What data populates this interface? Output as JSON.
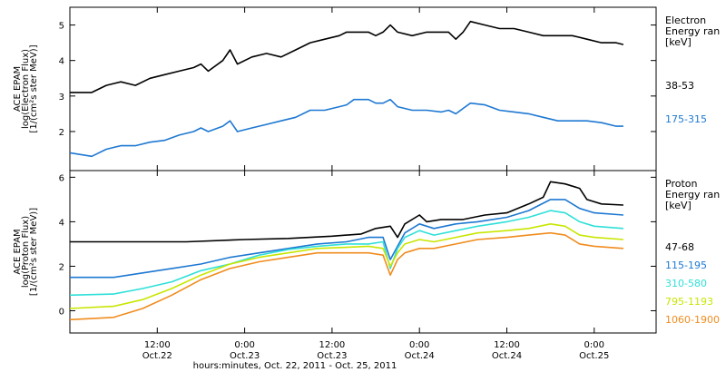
{
  "chart_data": {
    "type": "line",
    "xlabel": "hours:minutes, Oct. 22, 2011 - Oct. 25, 2011",
    "x_ticks": [
      {
        "t": 12,
        "time": "12:00",
        "date": "Oct.22"
      },
      {
        "t": 24,
        "time": "0:00",
        "date": "Oct.23"
      },
      {
        "t": 36,
        "time": "12:00",
        "date": "Oct.23"
      },
      {
        "t": 48,
        "time": "0:00",
        "date": "Oct.24"
      },
      {
        "t": 60,
        "time": "12:00",
        "date": "Oct.24"
      },
      {
        "t": 72,
        "time": "0:00",
        "date": "Oct.25"
      }
    ],
    "panels": [
      {
        "id": "electron",
        "ylabel": [
          "ACE EPAM",
          "log(Electron Flux)",
          "[1/(cm²s ster MeV)]"
        ],
        "ylim": [
          0.9,
          5.5
        ],
        "yticks": [
          2,
          3,
          4,
          5
        ],
        "legend_title": [
          "Electron",
          "Energy ran",
          "[keV]"
        ],
        "series": [
          {
            "name": "38-53",
            "color": "#000000",
            "points": [
              [
                0,
                3.1
              ],
              [
                3,
                3.1
              ],
              [
                5,
                3.3
              ],
              [
                7,
                3.4
              ],
              [
                9,
                3.3
              ],
              [
                11,
                3.5
              ],
              [
                13,
                3.6
              ],
              [
                15,
                3.7
              ],
              [
                17,
                3.8
              ],
              [
                18,
                3.9
              ],
              [
                19,
                3.7
              ],
              [
                21,
                4.0
              ],
              [
                22,
                4.3
              ],
              [
                23,
                3.9
              ],
              [
                25,
                4.1
              ],
              [
                27,
                4.2
              ],
              [
                29,
                4.1
              ],
              [
                31,
                4.3
              ],
              [
                33,
                4.5
              ],
              [
                35,
                4.6
              ],
              [
                37,
                4.7
              ],
              [
                38,
                4.8
              ],
              [
                39,
                4.8
              ],
              [
                41,
                4.8
              ],
              [
                42,
                4.7
              ],
              [
                43,
                4.8
              ],
              [
                44,
                5.0
              ],
              [
                45,
                4.8
              ],
              [
                47,
                4.7
              ],
              [
                49,
                4.8
              ],
              [
                51,
                4.8
              ],
              [
                52,
                4.8
              ],
              [
                53,
                4.6
              ],
              [
                54,
                4.8
              ],
              [
                55,
                5.1
              ],
              [
                57,
                5.0
              ],
              [
                59,
                4.9
              ],
              [
                61,
                4.9
              ],
              [
                63,
                4.8
              ],
              [
                65,
                4.7
              ],
              [
                67,
                4.7
              ],
              [
                69,
                4.7
              ],
              [
                71,
                4.6
              ],
              [
                73,
                4.5
              ],
              [
                75,
                4.5
              ],
              [
                76,
                4.45
              ]
            ]
          },
          {
            "name": "175-315",
            "color": "#1e78d2",
            "points": [
              [
                0,
                1.4
              ],
              [
                3,
                1.3
              ],
              [
                5,
                1.5
              ],
              [
                7,
                1.6
              ],
              [
                9,
                1.6
              ],
              [
                11,
                1.7
              ],
              [
                13,
                1.75
              ],
              [
                15,
                1.9
              ],
              [
                17,
                2.0
              ],
              [
                18,
                2.1
              ],
              [
                19,
                2.0
              ],
              [
                21,
                2.15
              ],
              [
                22,
                2.3
              ],
              [
                23,
                2.0
              ],
              [
                25,
                2.1
              ],
              [
                27,
                2.2
              ],
              [
                29,
                2.3
              ],
              [
                31,
                2.4
              ],
              [
                33,
                2.6
              ],
              [
                35,
                2.6
              ],
              [
                37,
                2.7
              ],
              [
                38,
                2.75
              ],
              [
                39,
                2.9
              ],
              [
                41,
                2.9
              ],
              [
                42,
                2.8
              ],
              [
                43,
                2.8
              ],
              [
                44,
                2.9
              ],
              [
                45,
                2.7
              ],
              [
                47,
                2.6
              ],
              [
                49,
                2.6
              ],
              [
                51,
                2.55
              ],
              [
                52,
                2.6
              ],
              [
                53,
                2.5
              ],
              [
                54,
                2.65
              ],
              [
                55,
                2.8
              ],
              [
                57,
                2.75
              ],
              [
                59,
                2.6
              ],
              [
                61,
                2.55
              ],
              [
                63,
                2.5
              ],
              [
                65,
                2.4
              ],
              [
                67,
                2.3
              ],
              [
                69,
                2.3
              ],
              [
                71,
                2.3
              ],
              [
                73,
                2.25
              ],
              [
                75,
                2.15
              ],
              [
                76,
                2.15
              ]
            ]
          }
        ]
      },
      {
        "id": "proton",
        "ylabel": [
          "ACE EPAM",
          "log(Proton Flux)",
          "[1/(cm²s ster MeV)]"
        ],
        "ylim": [
          -1,
          6.3
        ],
        "yticks": [
          0,
          2,
          4,
          6
        ],
        "legend_title": [
          "Proton",
          "Energy ran",
          "[keV]"
        ],
        "series": [
          {
            "name": "47-68",
            "color": "#000000",
            "points": [
              [
                0,
                3.1
              ],
              [
                8,
                3.1
              ],
              [
                16,
                3.1
              ],
              [
                24,
                3.2
              ],
              [
                30,
                3.25
              ],
              [
                36,
                3.35
              ],
              [
                40,
                3.45
              ],
              [
                42,
                3.7
              ],
              [
                44,
                3.8
              ],
              [
                45,
                3.3
              ],
              [
                46,
                3.9
              ],
              [
                48,
                4.3
              ],
              [
                49,
                4.0
              ],
              [
                51,
                4.1
              ],
              [
                54,
                4.1
              ],
              [
                57,
                4.3
              ],
              [
                60,
                4.4
              ],
              [
                63,
                4.8
              ],
              [
                65,
                5.1
              ],
              [
                66,
                5.8
              ],
              [
                68,
                5.7
              ],
              [
                70,
                5.5
              ],
              [
                71,
                5.0
              ],
              [
                73,
                4.8
              ],
              [
                76,
                4.75
              ]
            ]
          },
          {
            "name": "115-195",
            "color": "#1e78d2",
            "points": [
              [
                0,
                1.5
              ],
              [
                6,
                1.5
              ],
              [
                10,
                1.7
              ],
              [
                14,
                1.9
              ],
              [
                18,
                2.1
              ],
              [
                22,
                2.4
              ],
              [
                26,
                2.6
              ],
              [
                30,
                2.8
              ],
              [
                34,
                3.0
              ],
              [
                38,
                3.1
              ],
              [
                41,
                3.3
              ],
              [
                43,
                3.3
              ],
              [
                44,
                2.3
              ],
              [
                45,
                2.9
              ],
              [
                46,
                3.5
              ],
              [
                48,
                3.9
              ],
              [
                50,
                3.7
              ],
              [
                53,
                3.9
              ],
              [
                56,
                4.0
              ],
              [
                60,
                4.2
              ],
              [
                63,
                4.5
              ],
              [
                66,
                5.0
              ],
              [
                68,
                5.0
              ],
              [
                70,
                4.6
              ],
              [
                72,
                4.4
              ],
              [
                76,
                4.3
              ]
            ]
          },
          {
            "name": "310-580",
            "color": "#2ee0d8",
            "points": [
              [
                0,
                0.7
              ],
              [
                6,
                0.75
              ],
              [
                10,
                1.0
              ],
              [
                14,
                1.3
              ],
              [
                18,
                1.8
              ],
              [
                22,
                2.1
              ],
              [
                26,
                2.5
              ],
              [
                30,
                2.75
              ],
              [
                34,
                2.9
              ],
              [
                38,
                3.0
              ],
              [
                41,
                3.0
              ],
              [
                43,
                3.1
              ],
              [
                44,
                1.9
              ],
              [
                45,
                2.8
              ],
              [
                46,
                3.3
              ],
              [
                48,
                3.6
              ],
              [
                50,
                3.4
              ],
              [
                53,
                3.6
              ],
              [
                56,
                3.8
              ],
              [
                60,
                4.0
              ],
              [
                63,
                4.2
              ],
              [
                66,
                4.5
              ],
              [
                68,
                4.4
              ],
              [
                70,
                4.0
              ],
              [
                72,
                3.8
              ],
              [
                76,
                3.7
              ]
            ]
          },
          {
            "name": "795-1193",
            "color": "#c8e600",
            "points": [
              [
                0,
                0.1
              ],
              [
                6,
                0.2
              ],
              [
                10,
                0.5
              ],
              [
                14,
                1.0
              ],
              [
                18,
                1.6
              ],
              [
                22,
                2.1
              ],
              [
                26,
                2.4
              ],
              [
                30,
                2.6
              ],
              [
                34,
                2.8
              ],
              [
                38,
                2.85
              ],
              [
                41,
                2.9
              ],
              [
                43,
                2.8
              ],
              [
                44,
                2.0
              ],
              [
                45,
                2.6
              ],
              [
                46,
                3.0
              ],
              [
                48,
                3.2
              ],
              [
                50,
                3.1
              ],
              [
                53,
                3.3
              ],
              [
                56,
                3.5
              ],
              [
                60,
                3.6
              ],
              [
                63,
                3.7
              ],
              [
                66,
                3.9
              ],
              [
                68,
                3.8
              ],
              [
                70,
                3.4
              ],
              [
                72,
                3.3
              ],
              [
                76,
                3.2
              ]
            ]
          },
          {
            "name": "1060-1900",
            "color": "#f08c1e",
            "points": [
              [
                0,
                -0.4
              ],
              [
                6,
                -0.3
              ],
              [
                10,
                0.1
              ],
              [
                14,
                0.7
              ],
              [
                18,
                1.4
              ],
              [
                22,
                1.9
              ],
              [
                26,
                2.2
              ],
              [
                30,
                2.4
              ],
              [
                34,
                2.6
              ],
              [
                38,
                2.6
              ],
              [
                41,
                2.6
              ],
              [
                43,
                2.5
              ],
              [
                44,
                1.6
              ],
              [
                45,
                2.3
              ],
              [
                46,
                2.6
              ],
              [
                48,
                2.8
              ],
              [
                50,
                2.8
              ],
              [
                53,
                3.0
              ],
              [
                56,
                3.2
              ],
              [
                60,
                3.3
              ],
              [
                63,
                3.4
              ],
              [
                66,
                3.5
              ],
              [
                68,
                3.4
              ],
              [
                70,
                3.0
              ],
              [
                72,
                2.9
              ],
              [
                76,
                2.8
              ]
            ]
          }
        ]
      }
    ]
  }
}
